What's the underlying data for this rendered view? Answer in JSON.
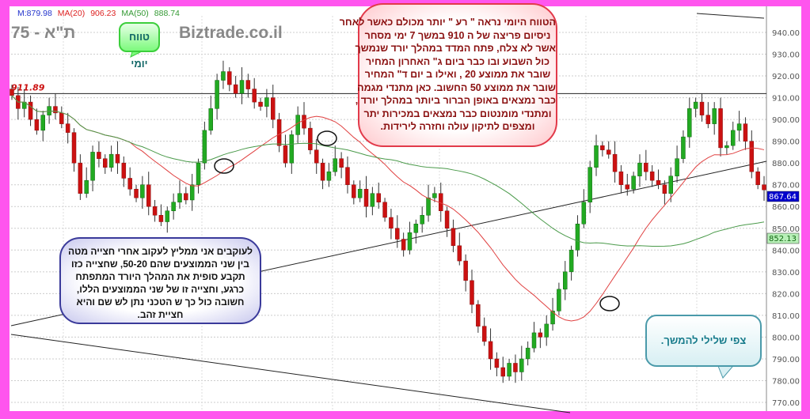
{
  "chart_data": {
    "type": "candlestick",
    "title": "ת\"א - 75",
    "watermark": "Biztrade.co.il",
    "legend": {
      "m": "M:879.98",
      "ma20_label": "MA(20)",
      "ma20_value": "906.23",
      "ma50_label": "MA(50)",
      "ma50_value": "888.74"
    },
    "y_ticks": [
      "940.00",
      "930.00",
      "920.00",
      "910.00",
      "900.00",
      "890.00",
      "880.00",
      "870.00",
      "860.00",
      "850.00",
      "840.00",
      "830.00",
      "820.00",
      "810.00",
      "800.00",
      "790.00",
      "780.00",
      "770.00"
    ],
    "ylim": [
      767,
      947
    ],
    "resistance_label": "911.89",
    "resistance_value": 911.89,
    "last_price_label": "867.64",
    "ma50_price_label": "852.13",
    "closes": [
      911,
      905,
      908,
      900,
      895,
      902,
      906,
      903,
      898,
      894,
      880,
      866,
      872,
      885,
      882,
      878,
      884,
      880,
      873,
      868,
      864,
      870,
      860,
      856,
      853,
      858,
      862,
      866,
      863,
      870,
      880,
      895,
      905,
      918,
      922,
      916,
      912,
      918,
      914,
      908,
      906,
      910,
      900,
      888,
      880,
      893,
      902,
      896,
      886,
      880,
      872,
      876,
      882,
      878,
      870,
      864,
      868,
      860,
      866,
      862,
      855,
      850,
      845,
      840,
      848,
      852,
      856,
      864,
      866,
      858,
      850,
      842,
      835,
      826,
      815,
      805,
      798,
      790,
      786,
      782,
      788,
      784,
      790,
      795,
      802,
      800,
      806,
      812,
      822,
      830,
      840,
      852,
      862,
      878,
      888,
      886,
      884,
      876,
      870,
      868,
      874,
      880,
      876,
      872,
      870,
      866,
      874,
      882,
      892,
      905,
      908,
      902,
      898,
      905,
      887,
      888,
      895,
      898,
      890,
      876,
      870,
      867.64
    ],
    "colors": {
      "up": "#22aa22",
      "down": "#cc1111",
      "ma20": "#e04040",
      "ma50": "#4a9a4a",
      "last_price_bg": "#0000cc",
      "ma50_bg": "#b8f0b8"
    }
  },
  "callouts": {
    "daily_range": "טווח יומי",
    "red_lines": [
      "הטווח היומי נראה \" רע \" יותר מכולם כאשר לאחר",
      "ניסיום פריצה של ה 910 במשך 7 ימי מסחר",
      "אשר לא צלח, פתח המדד במהלך יורד שנמשך",
      "כול השבוע ובו כבר ביום ג\" האחרון המחיר",
      "שובר את ממוצע 20 , ואילו ב יום ד\" המחיר",
      "שובר את ממוצע 50 החשוב. כאן מתנדי מגמה",
      "כבר נמצאים באופן הברור ביותר במהלך יורד ,",
      "ומתנדי מומנטום כבר נמצאים במכירות יתר",
      "ומצפים לתיקון עולה וחזרה לירידות."
    ],
    "blue_lines": [
      "לעוקבים אני ממליץ לעקוב אחרי חצייה מטה",
      "בין שני הממוצעים שהם 50-20, שחצייה כזו",
      "תקבע סופית את המהלך היורד המתפתח",
      "כרגע, וחצייה זו של שני הממוצעים הללו,",
      "חשובה כול כך ש הטכני נתן לש שם והיא",
      "חציית זהב."
    ],
    "outlook": "צפי שלילי להמשך."
  }
}
